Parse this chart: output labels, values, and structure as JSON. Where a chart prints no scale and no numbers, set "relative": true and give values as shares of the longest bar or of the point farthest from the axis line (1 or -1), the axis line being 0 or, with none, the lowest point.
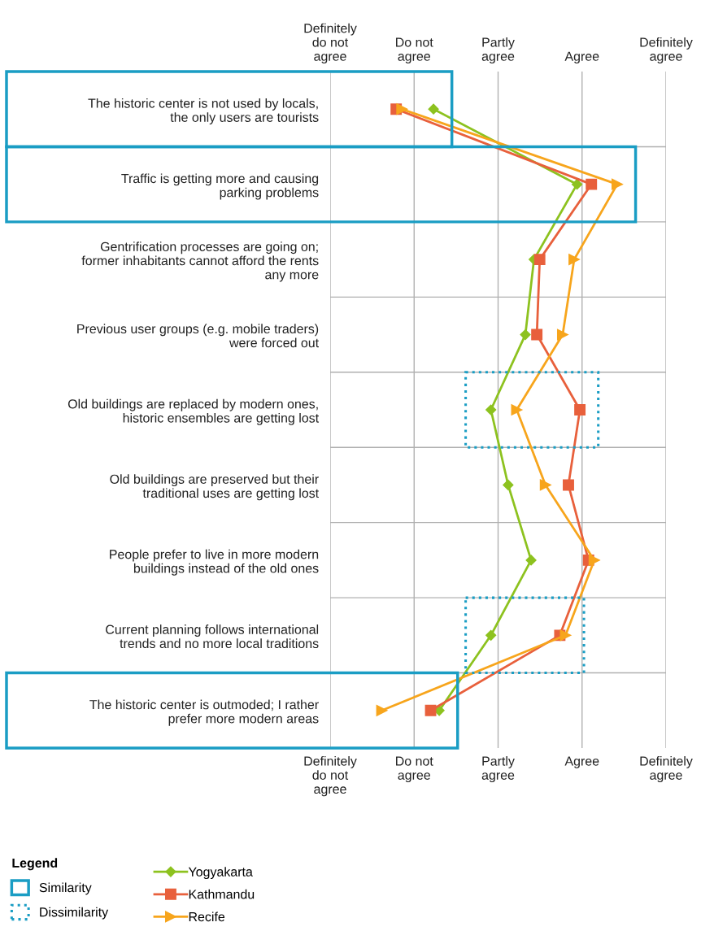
{
  "chart_data": {
    "type": "line",
    "orientation": "horizontal",
    "relative": true,
    "categories": [
      "The historic center is not used by locals,\nthe only users are tourists",
      "Traffic is getting more and causing\nparking problems",
      "Gentrification processes are going on;\nformer inhabitants cannot afford the rents\nany more",
      "Previous user groups (e.g. mobile traders)\nwere forced out",
      "Old buildings are replaced by modern ones,\nhistoric ensembles are getting lost",
      "Old buildings are preserved but their\ntraditional uses are getting lost",
      "People prefer to live in more modern\nbuildings instead of the old ones",
      "Current planning follows international\ntrends and no more local traditions",
      "The historic center is outmoded; I rather\nprefer more modern areas"
    ],
    "series": [
      {
        "name": "Yogyakarta",
        "color": "#8dc21f",
        "marker": "diamond",
        "values": [
          0.36,
          0.86,
          0.71,
          0.68,
          0.56,
          0.62,
          0.7,
          0.56,
          0.38
        ]
      },
      {
        "name": "Kathmandu",
        "color": "#e8603c",
        "marker": "square",
        "values": [
          0.23,
          0.91,
          0.73,
          0.72,
          0.87,
          0.83,
          0.9,
          0.8,
          0.35
        ]
      },
      {
        "name": "Recife",
        "color": "#f7a51c",
        "marker": "triangle",
        "values": [
          0.25,
          1,
          0.85,
          0.81,
          0.65,
          0.75,
          0.92,
          0.82,
          0.18
        ]
      }
    ],
    "annotations": [
      "Definitely\ndo not\nagree",
      "Do not\nagree",
      "Partly\nagree",
      "Agree",
      "Definitely\nagree",
      "Definitely\ndo not\nagree",
      "Do not\nagree",
      "Partly\nagree",
      "Agree",
      "Definitely\nagree",
      "Similarity",
      "Dissimilarity"
    ],
    "legend_title": "Legend",
    "legend": "bottom left",
    "grid": true,
    "line_style": "solid"
  }
}
